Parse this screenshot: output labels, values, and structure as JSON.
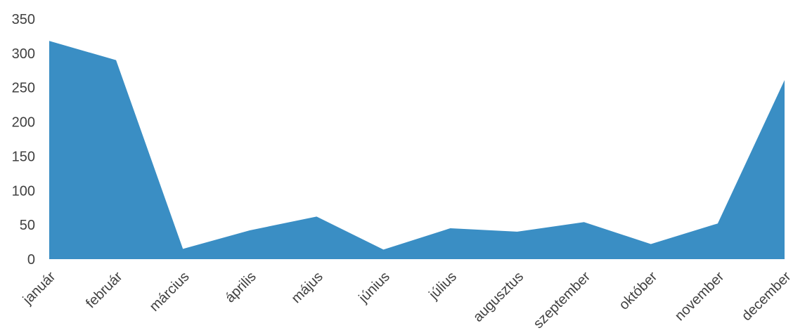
{
  "chart_data": {
    "type": "area",
    "title": "",
    "xlabel": "",
    "ylabel": "",
    "categories": [
      "január",
      "február",
      "március",
      "április",
      "május",
      "június",
      "július",
      "augusztus",
      "szeptember",
      "október",
      "november",
      "december"
    ],
    "series": [
      {
        "values": [
          318,
          290,
          15,
          42,
          62,
          14,
          45,
          40,
          54,
          22,
          52,
          261
        ]
      }
    ],
    "ylim": [
      0,
      350
    ],
    "yticks": [
      "0",
      "50",
      "100",
      "150",
      "200",
      "250",
      "300",
      "350"
    ],
    "grid": false,
    "legend": "none",
    "colors": {
      "area": "#3a8ec4"
    }
  }
}
